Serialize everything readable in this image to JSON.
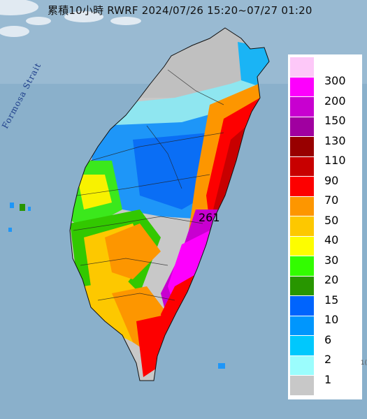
{
  "title": "累積10小時 RWRF 2024/07/26 15:20~07/27 01:20",
  "strait_label": "Formosa Strait",
  "max_value_label": "261",
  "legend": {
    "levels": [
      {
        "label": "300",
        "color": "#fdc8f8"
      },
      {
        "label": "200",
        "color": "#fd00fd"
      },
      {
        "label": "150",
        "color": "#c800d0"
      },
      {
        "label": "130",
        "color": "#a000a0"
      },
      {
        "label": "110",
        "color": "#980000"
      },
      {
        "label": "90",
        "color": "#c80000"
      },
      {
        "label": "70",
        "color": "#fd0000"
      },
      {
        "label": "50",
        "color": "#fd9600"
      },
      {
        "label": "40",
        "color": "#fdc800"
      },
      {
        "label": "30",
        "color": "#fdfd00"
      },
      {
        "label": "20",
        "color": "#32fd00"
      },
      {
        "label": "15",
        "color": "#289600"
      },
      {
        "label": "10",
        "color": "#0064fd"
      },
      {
        "label": "6",
        "color": "#0096fd"
      },
      {
        "label": "2",
        "color": "#00c8fd"
      },
      {
        "label": "1",
        "color": "#9bfdfd"
      },
      {
        "label": "",
        "color": "#c8c8c8"
      }
    ]
  },
  "corner_mark": "1("
}
